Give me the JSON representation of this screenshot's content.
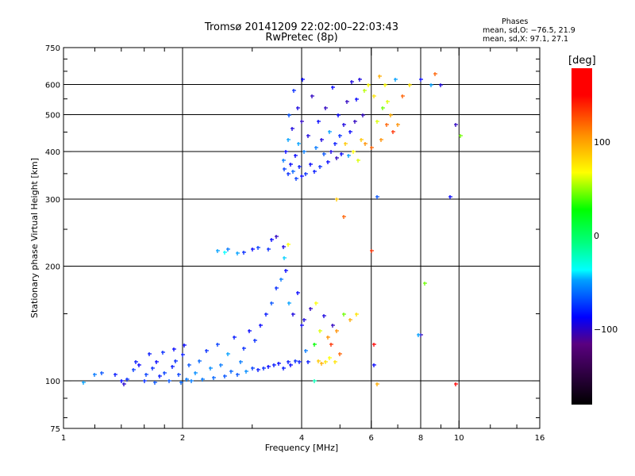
{
  "header": {
    "title": "Tromsø 20141209 22:02:00–22:03:43",
    "subtitle": "RwPretec (8p)",
    "stats_title": "Phases",
    "stats_o": "mean, sd,O: −76.5, 21.9",
    "stats_x": "mean, sd,X:  97.1, 27.1"
  },
  "colorbar": {
    "label": "[deg]",
    "range": [
      -180,
      180
    ],
    "ticks": [
      {
        "value": 100,
        "label": "100"
      },
      {
        "value": 0,
        "label": "0"
      },
      {
        "value": -100,
        "label": "−100"
      }
    ],
    "stops": [
      [
        -180,
        "#000000"
      ],
      [
        -140,
        "#5a0080"
      ],
      [
        -100,
        "#0000ff"
      ],
      [
        -60,
        "#00a0ff"
      ],
      [
        -50,
        "#00ffff"
      ],
      [
        0,
        "#00ff80"
      ],
      [
        30,
        "#00ff00"
      ],
      [
        100,
        "#ffff00"
      ],
      [
        140,
        "#ff9000"
      ],
      [
        170,
        "#ff0000"
      ],
      [
        180,
        "#ff0000"
      ]
    ]
  },
  "chart_data": {
    "type": "scatter",
    "title": "Tromsø 20141209 22:02:00–22:03:43",
    "subtitle": "RwPretec (8p)",
    "xlabel": "Frequency [MHz]",
    "ylabel": "Stationary phase Virtual Height [km]",
    "xscale": "log",
    "yscale": "log",
    "xlim": [
      1,
      16
    ],
    "ylim": [
      75,
      750
    ],
    "xticks": [
      {
        "v": 1,
        "l": "1"
      },
      {
        "v": 2,
        "l": "2"
      },
      {
        "v": 4,
        "l": "4"
      },
      {
        "v": 6,
        "l": "6"
      },
      {
        "v": 8,
        "l": "8"
      },
      {
        "v": 10,
        "l": "10"
      },
      {
        "v": 16,
        "l": "16"
      }
    ],
    "yticks": [
      {
        "v": 75,
        "l": "75"
      },
      {
        "v": 100,
        "l": "100"
      },
      {
        "v": 200,
        "l": "200"
      },
      {
        "v": 300,
        "l": "300"
      },
      {
        "v": 400,
        "l": "400"
      },
      {
        "v": 500,
        "l": "500"
      },
      {
        "v": 600,
        "l": "600"
      },
      {
        "v": 750,
        "l": "750"
      }
    ],
    "xgrid": [
      2,
      4,
      6,
      8,
      10
    ],
    "ygrid": [
      100,
      200,
      300,
      400,
      500,
      600
    ],
    "xminor": [
      1.2,
      1.4,
      1.6,
      1.8,
      3,
      5,
      7,
      9,
      12,
      14
    ],
    "yminor": [
      80,
      90,
      150,
      250,
      350,
      450,
      550,
      650,
      700
    ],
    "grid": true,
    "color_by": "phase [deg]",
    "points_fields": [
      "frequency_mhz",
      "height_km",
      "phase_deg"
    ],
    "points": [
      [
        1.12,
        99,
        -60
      ],
      [
        1.2,
        104,
        -70
      ],
      [
        1.25,
        105,
        -80
      ],
      [
        1.35,
        104,
        -95
      ],
      [
        1.4,
        100,
        -100
      ],
      [
        1.42,
        98,
        -115
      ],
      [
        1.45,
        101,
        -90
      ],
      [
        1.5,
        107,
        -85
      ],
      [
        1.52,
        112,
        -95
      ],
      [
        1.55,
        110,
        -100
      ],
      [
        1.6,
        100,
        -90
      ],
      [
        1.62,
        104,
        -85
      ],
      [
        1.65,
        118,
        -95
      ],
      [
        1.68,
        108,
        -90
      ],
      [
        1.7,
        99,
        -80
      ],
      [
        1.72,
        112,
        -100
      ],
      [
        1.75,
        103,
        -95
      ],
      [
        1.78,
        119,
        -90
      ],
      [
        1.8,
        105,
        -85
      ],
      [
        1.85,
        100,
        -80
      ],
      [
        1.88,
        109,
        -95
      ],
      [
        1.9,
        121,
        -100
      ],
      [
        1.92,
        113,
        -90
      ],
      [
        1.95,
        104,
        -85
      ],
      [
        1.98,
        99,
        -75
      ],
      [
        2.0,
        117,
        -95
      ],
      [
        2.02,
        124,
        -100
      ],
      [
        2.05,
        101,
        -70
      ],
      [
        2.08,
        110,
        -80
      ],
      [
        2.1,
        100,
        -70
      ],
      [
        2.15,
        105,
        -65
      ],
      [
        2.2,
        113,
        -75
      ],
      [
        2.25,
        101,
        -70
      ],
      [
        2.3,
        120,
        -90
      ],
      [
        2.35,
        108,
        -65
      ],
      [
        2.4,
        102,
        -75
      ],
      [
        2.45,
        125,
        -85
      ],
      [
        2.5,
        110,
        -70
      ],
      [
        2.55,
        103,
        -80
      ],
      [
        2.6,
        118,
        -60
      ],
      [
        2.65,
        106,
        -75
      ],
      [
        2.7,
        130,
        -95
      ],
      [
        2.75,
        104,
        -80
      ],
      [
        2.8,
        112,
        -70
      ],
      [
        2.85,
        122,
        -90
      ],
      [
        2.9,
        106,
        -65
      ],
      [
        2.95,
        135,
        -100
      ],
      [
        3.0,
        108,
        -85
      ],
      [
        3.05,
        128,
        -90
      ],
      [
        3.1,
        107,
        -95
      ],
      [
        3.15,
        140,
        -100
      ],
      [
        3.2,
        108,
        -90
      ],
      [
        3.25,
        150,
        -95
      ],
      [
        3.3,
        109,
        -100
      ],
      [
        3.35,
        160,
        -80
      ],
      [
        3.4,
        110,
        -95
      ],
      [
        3.45,
        175,
        -90
      ],
      [
        3.5,
        111,
        -100
      ],
      [
        3.55,
        185,
        -70
      ],
      [
        3.6,
        108,
        -95
      ],
      [
        3.65,
        195,
        -100
      ],
      [
        3.7,
        112,
        -95
      ],
      [
        3.72,
        160,
        -60
      ],
      [
        3.75,
        110,
        -100
      ],
      [
        3.8,
        150,
        -110
      ],
      [
        3.85,
        113,
        -90
      ],
      [
        3.9,
        170,
        -100
      ],
      [
        3.95,
        112,
        -95
      ],
      [
        4.0,
        140,
        -105
      ],
      [
        4.05,
        145,
        -110
      ],
      [
        4.1,
        120,
        -70
      ],
      [
        4.15,
        112,
        -95
      ],
      [
        4.2,
        155,
        -120
      ],
      [
        4.3,
        125,
        30
      ],
      [
        4.35,
        160,
        100
      ],
      [
        4.4,
        113,
        120
      ],
      [
        4.45,
        135,
        90
      ],
      [
        4.5,
        111,
        130
      ],
      [
        4.55,
        148,
        -110
      ],
      [
        4.6,
        112,
        110
      ],
      [
        4.65,
        130,
        140
      ],
      [
        4.7,
        115,
        100
      ],
      [
        4.75,
        125,
        160
      ],
      [
        4.8,
        140,
        -120
      ],
      [
        4.85,
        112,
        110
      ],
      [
        4.9,
        135,
        140
      ],
      [
        5.0,
        118,
        150
      ],
      [
        5.1,
        150,
        60
      ],
      [
        2.45,
        220,
        -60
      ],
      [
        2.55,
        218,
        -50
      ],
      [
        2.6,
        222,
        -70
      ],
      [
        2.75,
        216,
        -60
      ],
      [
        2.85,
        218,
        -90
      ],
      [
        3.0,
        222,
        -100
      ],
      [
        3.1,
        224,
        -85
      ],
      [
        3.3,
        222,
        -90
      ],
      [
        3.35,
        235,
        -100
      ],
      [
        3.45,
        240,
        -120
      ],
      [
        3.6,
        225,
        -110
      ],
      [
        3.62,
        210,
        -55
      ],
      [
        3.7,
        228,
        100
      ],
      [
        3.6,
        380,
        -70
      ],
      [
        3.62,
        360,
        -85
      ],
      [
        3.65,
        400,
        -100
      ],
      [
        3.7,
        350,
        -90
      ],
      [
        3.7,
        430,
        -60
      ],
      [
        3.72,
        500,
        -80
      ],
      [
        3.75,
        370,
        -100
      ],
      [
        3.78,
        460,
        -110
      ],
      [
        3.8,
        355,
        -75
      ],
      [
        3.82,
        580,
        -90
      ],
      [
        3.85,
        390,
        -100
      ],
      [
        3.88,
        340,
        -85
      ],
      [
        3.9,
        520,
        -110
      ],
      [
        3.92,
        420,
        -60
      ],
      [
        3.95,
        365,
        -95
      ],
      [
        4.0,
        345,
        -100
      ],
      [
        4.0,
        480,
        -120
      ],
      [
        4.02,
        620,
        -100
      ],
      [
        4.05,
        400,
        -70
      ],
      [
        4.1,
        350,
        -90
      ],
      [
        4.15,
        440,
        -110
      ],
      [
        4.2,
        370,
        -100
      ],
      [
        4.25,
        560,
        -120
      ],
      [
        4.3,
        355,
        -95
      ],
      [
        4.35,
        410,
        -70
      ],
      [
        4.4,
        480,
        -100
      ],
      [
        4.45,
        365,
        -90
      ],
      [
        4.5,
        430,
        -110
      ],
      [
        4.55,
        395,
        -80
      ],
      [
        4.6,
        520,
        -120
      ],
      [
        4.65,
        375,
        -100
      ],
      [
        4.7,
        450,
        -60
      ],
      [
        4.75,
        400,
        -110
      ],
      [
        4.8,
        590,
        -100
      ],
      [
        4.85,
        420,
        -95
      ],
      [
        4.9,
        385,
        -120
      ],
      [
        4.95,
        500,
        -100
      ],
      [
        5.0,
        440,
        -90
      ],
      [
        5.05,
        395,
        -100
      ],
      [
        5.1,
        470,
        -110
      ],
      [
        5.15,
        420,
        120
      ],
      [
        5.2,
        540,
        -120
      ],
      [
        5.25,
        390,
        -60
      ],
      [
        5.3,
        450,
        -100
      ],
      [
        5.35,
        610,
        -110
      ],
      [
        5.4,
        400,
        100
      ],
      [
        5.45,
        480,
        -120
      ],
      [
        5.5,
        550,
        -100
      ],
      [
        5.55,
        380,
        90
      ],
      [
        5.6,
        620,
        -110
      ],
      [
        5.65,
        430,
        120
      ],
      [
        5.7,
        500,
        -120
      ],
      [
        5.75,
        580,
        80
      ],
      [
        5.8,
        420,
        140
      ],
      [
        5.9,
        600,
        100
      ],
      [
        6.0,
        410,
        150
      ],
      [
        6.1,
        560,
        110
      ],
      [
        6.2,
        480,
        90
      ],
      [
        6.3,
        630,
        130
      ],
      [
        6.35,
        430,
        140
      ],
      [
        6.4,
        520,
        60
      ],
      [
        6.5,
        600,
        100
      ],
      [
        6.55,
        470,
        150
      ],
      [
        6.6,
        540,
        90
      ],
      [
        6.7,
        500,
        130
      ],
      [
        6.8,
        450,
        160
      ],
      [
        6.9,
        620,
        -60
      ],
      [
        7.0,
        470,
        140
      ],
      [
        7.2,
        560,
        150
      ],
      [
        7.5,
        600,
        110
      ],
      [
        8.0,
        620,
        -100
      ],
      [
        8.5,
        600,
        -60
      ],
      [
        8.7,
        640,
        150
      ],
      [
        9.0,
        600,
        -110
      ],
      [
        9.8,
        470,
        -120
      ],
      [
        10.1,
        440,
        60
      ],
      [
        9.5,
        305,
        -100
      ],
      [
        6.0,
        220,
        160
      ],
      [
        6.2,
        305,
        -80
      ],
      [
        4.9,
        300,
        120
      ],
      [
        5.1,
        270,
        150
      ],
      [
        8.2,
        180,
        60
      ],
      [
        8.0,
        132,
        -120
      ],
      [
        7.9,
        132,
        -60
      ],
      [
        6.1,
        125,
        170
      ],
      [
        6.1,
        110,
        -100
      ],
      [
        6.2,
        98,
        130
      ],
      [
        9.8,
        98,
        170
      ],
      [
        5.3,
        145,
        130
      ],
      [
        5.5,
        150,
        110
      ],
      [
        4.3,
        100,
        -20
      ]
    ]
  }
}
